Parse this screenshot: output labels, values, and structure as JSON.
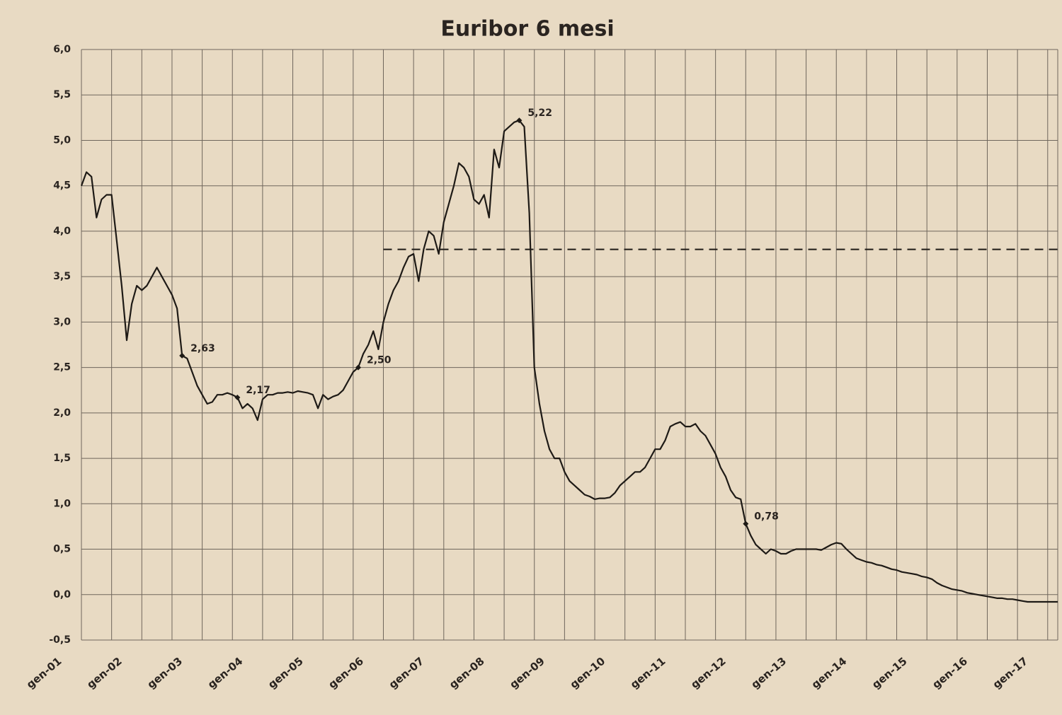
{
  "chart_data": {
    "type": "line",
    "title": "Euribor 6 mesi",
    "categories": [
      "gen-01",
      null,
      null,
      null,
      null,
      null,
      null,
      null,
      null,
      null,
      null,
      null,
      "gen-02",
      null,
      null,
      null,
      null,
      null,
      null,
      null,
      null,
      null,
      null,
      null,
      "gen-03",
      null,
      null,
      null,
      null,
      null,
      null,
      null,
      null,
      null,
      null,
      null,
      "gen-04",
      null,
      null,
      null,
      null,
      null,
      null,
      null,
      null,
      null,
      null,
      null,
      "gen-05",
      null,
      null,
      null,
      null,
      null,
      null,
      null,
      null,
      null,
      null,
      null,
      "gen-06",
      null,
      null,
      null,
      null,
      null,
      null,
      null,
      null,
      null,
      null,
      null,
      "gen-07",
      null,
      null,
      null,
      null,
      null,
      null,
      null,
      null,
      null,
      null,
      null,
      "gen-08",
      null,
      null,
      null,
      null,
      null,
      null,
      null,
      null,
      null,
      null,
      null,
      "gen-09",
      null,
      null,
      null,
      null,
      null,
      null,
      null,
      null,
      null,
      null,
      null,
      "gen-10",
      null,
      null,
      null,
      null,
      null,
      null,
      null,
      null,
      null,
      null,
      null,
      "gen-11",
      null,
      null,
      null,
      null,
      null,
      null,
      null,
      null,
      null,
      null,
      null,
      "gen-12",
      null,
      null,
      null,
      null,
      null,
      null,
      null,
      null,
      null,
      null,
      null,
      "gen-13",
      null,
      null,
      null,
      null,
      null,
      null,
      null,
      null,
      null,
      null,
      null,
      "gen-14",
      null,
      null,
      null,
      null,
      null,
      null,
      null,
      null,
      null,
      null,
      null,
      "gen-15",
      null,
      null,
      null,
      null,
      null,
      null,
      null,
      null,
      null,
      null,
      null,
      "gen-16",
      null,
      null,
      null,
      null,
      null,
      null,
      null,
      null,
      null,
      null,
      null,
      "gen-17",
      null,
      null
    ],
    "values": [
      4.5,
      4.65,
      4.6,
      4.15,
      4.35,
      4.4,
      4.4,
      3.9,
      3.4,
      2.8,
      3.2,
      3.4,
      3.35,
      3.4,
      3.5,
      3.6,
      3.5,
      3.4,
      3.3,
      3.15,
      2.63,
      2.6,
      2.45,
      2.3,
      2.2,
      2.1,
      2.12,
      2.2,
      2.2,
      2.22,
      2.2,
      2.17,
      2.05,
      2.1,
      2.05,
      1.92,
      2.15,
      2.2,
      2.2,
      2.22,
      2.22,
      2.23,
      2.22,
      2.24,
      2.23,
      2.22,
      2.2,
      2.05,
      2.2,
      2.15,
      2.18,
      2.2,
      2.25,
      2.35,
      2.45,
      2.5,
      2.65,
      2.75,
      2.9,
      2.7,
      3.0,
      3.2,
      3.35,
      3.45,
      3.6,
      3.72,
      3.75,
      3.45,
      3.8,
      4.0,
      3.95,
      3.75,
      4.1,
      4.3,
      4.5,
      4.75,
      4.7,
      4.6,
      4.35,
      4.3,
      4.4,
      4.15,
      4.9,
      4.7,
      5.1,
      5.15,
      5.2,
      5.22,
      5.15,
      4.2,
      2.5,
      2.1,
      1.8,
      1.6,
      1.5,
      1.5,
      1.35,
      1.25,
      1.2,
      1.15,
      1.1,
      1.08,
      1.05,
      1.06,
      1.06,
      1.07,
      1.12,
      1.2,
      1.25,
      1.3,
      1.35,
      1.35,
      1.4,
      1.5,
      1.6,
      1.6,
      1.7,
      1.85,
      1.88,
      1.9,
      1.85,
      1.85,
      1.88,
      1.8,
      1.75,
      1.65,
      1.55,
      1.4,
      1.3,
      1.15,
      1.07,
      1.05,
      0.78,
      0.65,
      0.55,
      0.5,
      0.45,
      0.5,
      0.48,
      0.45,
      0.45,
      0.48,
      0.5,
      0.5,
      0.5,
      0.5,
      0.5,
      0.49,
      0.52,
      0.55,
      0.57,
      0.56,
      0.5,
      0.45,
      0.4,
      0.38,
      0.36,
      0.35,
      0.33,
      0.32,
      0.3,
      0.28,
      0.27,
      0.25,
      0.24,
      0.23,
      0.22,
      0.2,
      0.19,
      0.17,
      0.13,
      0.1,
      0.08,
      0.06,
      0.05,
      0.04,
      0.02,
      0.01,
      0,
      -0.01,
      -0.02,
      -0.03,
      -0.04,
      -0.04,
      -0.05,
      -0.05,
      -0.06,
      -0.07,
      -0.08,
      -0.08,
      -0.08,
      -0.08,
      -0.08,
      -0.08,
      -0.08
    ],
    "value_labels": [
      null,
      null,
      null,
      null,
      null,
      null,
      null,
      null,
      null,
      null,
      null,
      null,
      null,
      null,
      null,
      null,
      null,
      null,
      null,
      null,
      "2,63",
      null,
      null,
      null,
      null,
      null,
      null,
      null,
      null,
      null,
      null,
      "2,17",
      null,
      null,
      null,
      null,
      null,
      null,
      null,
      null,
      null,
      null,
      null,
      null,
      null,
      null,
      null,
      null,
      null,
      null,
      null,
      null,
      null,
      null,
      null,
      "2,50",
      null,
      null,
      null,
      null,
      null,
      null,
      null,
      null,
      null,
      null,
      null,
      null,
      null,
      null,
      null,
      null,
      null,
      null,
      null,
      null,
      null,
      null,
      null,
      null,
      null,
      null,
      null,
      null,
      null,
      null,
      null,
      "5,22",
      null,
      null,
      null,
      null,
      null,
      null,
      null,
      null,
      null,
      null,
      null,
      null,
      null,
      null,
      null,
      null,
      null,
      null,
      null,
      null,
      null,
      null,
      null,
      null,
      null,
      null,
      null,
      null,
      null,
      null,
      null,
      null,
      null,
      null,
      null,
      null,
      null,
      null,
      null,
      null,
      null,
      null,
      null,
      null,
      "0,78",
      null,
      null,
      null,
      null,
      null,
      null,
      null,
      null,
      null,
      null,
      null,
      null,
      null,
      null,
      null,
      null,
      null,
      null,
      null,
      null,
      null,
      null,
      null,
      null,
      null,
      null,
      null,
      null,
      null,
      null,
      null,
      null,
      null,
      null,
      null,
      null,
      null,
      null,
      null,
      null,
      null,
      null,
      null,
      null,
      null,
      null,
      null,
      null,
      null,
      null,
      null,
      null,
      null,
      null,
      null,
      null,
      null,
      null,
      null,
      null,
      null,
      null
    ],
    "color": "#1e1a16",
    "ylim": [
      -0.5,
      6.0
    ],
    "yticks": [
      {
        "value": -0.5,
        "label": "-0,5"
      },
      {
        "value": 0,
        "label": "0,0"
      },
      {
        "value": 0.5,
        "label": "0,5"
      },
      {
        "value": 1,
        "label": "1,0"
      },
      {
        "value": 1.5,
        "label": "1,5"
      },
      {
        "value": 2,
        "label": "2,0"
      },
      {
        "value": 2.5,
        "label": "2,5"
      },
      {
        "value": 3,
        "label": "3,0"
      },
      {
        "value": 3.5,
        "label": "3,5"
      },
      {
        "value": 4,
        "label": "4,0"
      },
      {
        "value": 4.5,
        "label": "4,5"
      },
      {
        "value": 5,
        "label": "5,0"
      },
      {
        "value": 5.5,
        "label": "5,5"
      },
      {
        "value": 6,
        "label": "6,0"
      }
    ],
    "grid": true,
    "reference_line": {
      "value": 3.8,
      "start": "gen-06"
    }
  }
}
